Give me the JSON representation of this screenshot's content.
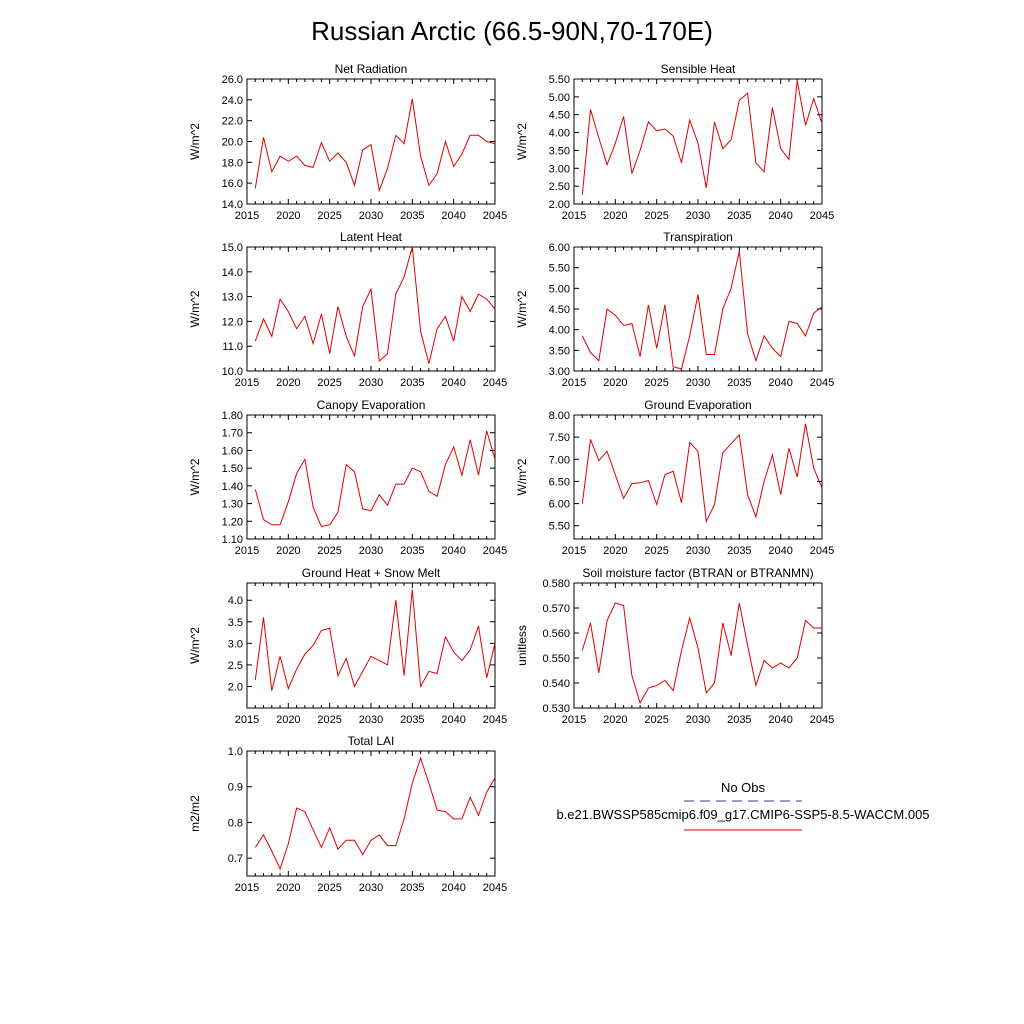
{
  "title": "Russian Arctic (66.5-90N,70-170E)",
  "legend": {
    "obs_label": "No Obs",
    "model_label": "b.e21.BWSSP585cmip6.f09_g17.CMIP6-SSP5-8.5-WACCM.005",
    "obs_color": "#3a3a8c",
    "model_color": "#e00000"
  },
  "chart_data": [
    {
      "type": "line",
      "title": "Net Radiation",
      "ylabel": "W/m^2",
      "xlim": [
        2015,
        2045
      ],
      "ylim": [
        14,
        26
      ],
      "xticks": [
        2015,
        2020,
        2025,
        2030,
        2035,
        2040,
        2045
      ],
      "yticks": [
        "14.0",
        "16.0",
        "18.0",
        "20.0",
        "22.0",
        "24.0",
        "26.0"
      ],
      "x": [
        2016,
        2017,
        2018,
        2019,
        2020,
        2021,
        2022,
        2023,
        2024,
        2025,
        2026,
        2027,
        2028,
        2029,
        2030,
        2031,
        2032,
        2033,
        2034,
        2035,
        2036,
        2037,
        2038,
        2039,
        2040,
        2041,
        2042,
        2043,
        2044,
        2045
      ],
      "values": [
        15.5,
        20.4,
        17.1,
        18.6,
        18.1,
        18.6,
        17.7,
        17.5,
        19.9,
        18.1,
        18.9,
        18.0,
        15.8,
        19.2,
        19.7,
        15.3,
        17.4,
        20.6,
        19.8,
        24.1,
        18.6,
        15.8,
        16.9,
        20.0,
        17.6,
        18.8,
        20.6,
        20.6,
        20.0,
        19.8
      ]
    },
    {
      "type": "line",
      "title": "Sensible Heat",
      "ylabel": "W/m^2",
      "xlim": [
        2015,
        2045
      ],
      "ylim": [
        2,
        5.5
      ],
      "xticks": [
        2015,
        2020,
        2025,
        2030,
        2035,
        2040,
        2045
      ],
      "yticks": [
        "2.00",
        "2.50",
        "3.00",
        "3.50",
        "4.00",
        "4.50",
        "5.00",
        "5.50"
      ],
      "x": [
        2016,
        2017,
        2018,
        2019,
        2020,
        2021,
        2022,
        2023,
        2024,
        2025,
        2026,
        2027,
        2028,
        2029,
        2030,
        2031,
        2032,
        2033,
        2034,
        2035,
        2036,
        2037,
        2038,
        2039,
        2040,
        2041,
        2042,
        2043,
        2044,
        2045
      ],
      "values": [
        2.25,
        4.65,
        3.85,
        3.1,
        3.7,
        4.45,
        2.85,
        3.5,
        4.3,
        4.05,
        4.1,
        3.9,
        3.15,
        4.35,
        3.7,
        2.45,
        4.3,
        3.55,
        3.8,
        4.9,
        5.1,
        3.15,
        2.9,
        4.7,
        3.55,
        3.25,
        5.45,
        4.2,
        4.95,
        4.25
      ]
    },
    {
      "type": "line",
      "title": "Latent Heat",
      "ylabel": "W/m^2",
      "xlim": [
        2015,
        2045
      ],
      "ylim": [
        10,
        15
      ],
      "xticks": [
        2015,
        2020,
        2025,
        2030,
        2035,
        2040,
        2045
      ],
      "yticks": [
        "10.0",
        "11.0",
        "12.0",
        "13.0",
        "14.0",
        "15.0"
      ],
      "x": [
        2016,
        2017,
        2018,
        2019,
        2020,
        2021,
        2022,
        2023,
        2024,
        2025,
        2026,
        2027,
        2028,
        2029,
        2030,
        2031,
        2032,
        2033,
        2034,
        2035,
        2036,
        2037,
        2038,
        2039,
        2040,
        2041,
        2042,
        2043,
        2044,
        2045
      ],
      "values": [
        11.2,
        12.1,
        11.4,
        12.9,
        12.4,
        11.7,
        12.2,
        11.1,
        12.3,
        10.7,
        12.6,
        11.4,
        10.6,
        12.6,
        13.3,
        10.4,
        10.7,
        13.1,
        13.8,
        15.0,
        11.6,
        10.3,
        11.7,
        12.2,
        11.2,
        13.0,
        12.4,
        13.1,
        12.9,
        12.5
      ]
    },
    {
      "type": "line",
      "title": "Transpiration",
      "ylabel": "W/m^2",
      "xlim": [
        2015,
        2045
      ],
      "ylim": [
        3,
        6
      ],
      "xticks": [
        2015,
        2020,
        2025,
        2030,
        2035,
        2040,
        2045
      ],
      "yticks": [
        "3.00",
        "3.50",
        "4.00",
        "4.50",
        "5.00",
        "5.50",
        "6.00"
      ],
      "x": [
        2016,
        2017,
        2018,
        2019,
        2020,
        2021,
        2022,
        2023,
        2024,
        2025,
        2026,
        2027,
        2028,
        2029,
        2030,
        2031,
        2032,
        2033,
        2034,
        2035,
        2036,
        2037,
        2038,
        2039,
        2040,
        2041,
        2042,
        2043,
        2044,
        2045
      ],
      "values": [
        3.85,
        3.45,
        3.25,
        4.5,
        4.35,
        4.1,
        4.15,
        3.35,
        4.6,
        3.55,
        4.6,
        3.1,
        3.05,
        3.85,
        4.85,
        3.4,
        3.4,
        4.5,
        5.0,
        5.9,
        3.9,
        3.25,
        3.85,
        3.55,
        3.35,
        4.2,
        4.15,
        3.85,
        4.4,
        4.55
      ]
    },
    {
      "type": "line",
      "title": "Canopy Evaporation",
      "ylabel": "W/m^2",
      "xlim": [
        2015,
        2045
      ],
      "ylim": [
        1.1,
        1.8
      ],
      "xticks": [
        2015,
        2020,
        2025,
        2030,
        2035,
        2040,
        2045
      ],
      "yticks": [
        "1.10",
        "1.20",
        "1.30",
        "1.40",
        "1.50",
        "1.60",
        "1.70",
        "1.80"
      ],
      "x": [
        2016,
        2017,
        2018,
        2019,
        2020,
        2021,
        2022,
        2023,
        2024,
        2025,
        2026,
        2027,
        2028,
        2029,
        2030,
        2031,
        2032,
        2033,
        2034,
        2035,
        2036,
        2037,
        2038,
        2039,
        2040,
        2041,
        2042,
        2043,
        2044,
        2045
      ],
      "values": [
        1.38,
        1.21,
        1.18,
        1.18,
        1.31,
        1.47,
        1.55,
        1.28,
        1.17,
        1.18,
        1.25,
        1.52,
        1.48,
        1.27,
        1.26,
        1.35,
        1.29,
        1.41,
        1.41,
        1.5,
        1.48,
        1.37,
        1.34,
        1.52,
        1.62,
        1.46,
        1.66,
        1.46,
        1.71,
        1.55
      ]
    },
    {
      "type": "line",
      "title": "Ground Evaporation",
      "ylabel": "W/m^2",
      "xlim": [
        2015,
        2045
      ],
      "ylim": [
        5.2,
        8.0
      ],
      "xticks": [
        2015,
        2020,
        2025,
        2030,
        2035,
        2040,
        2045
      ],
      "yticks": [
        "5.50",
        "6.00",
        "6.50",
        "7.00",
        "7.50",
        "8.00"
      ],
      "x": [
        2016,
        2017,
        2018,
        2019,
        2020,
        2021,
        2022,
        2023,
        2024,
        2025,
        2026,
        2027,
        2028,
        2029,
        2030,
        2031,
        2032,
        2033,
        2034,
        2035,
        2036,
        2037,
        2038,
        2039,
        2040,
        2041,
        2042,
        2043,
        2044,
        2045
      ],
      "values": [
        6.0,
        7.45,
        6.97,
        7.18,
        6.65,
        6.12,
        6.45,
        6.47,
        6.52,
        5.98,
        6.65,
        6.73,
        6.02,
        7.38,
        7.18,
        5.6,
        5.98,
        7.15,
        7.35,
        7.55,
        6.2,
        5.7,
        6.5,
        7.1,
        6.2,
        7.25,
        6.6,
        7.8,
        6.8,
        6.35
      ]
    },
    {
      "type": "line",
      "title": "Ground Heat + Snow Melt",
      "ylabel": "W/m^2",
      "xlim": [
        2015,
        2045
      ],
      "ylim": [
        1.5,
        4.4
      ],
      "xticks": [
        2015,
        2020,
        2025,
        2030,
        2035,
        2040,
        2045
      ],
      "yticks": [
        "2.0",
        "2.5",
        "3.0",
        "3.5",
        "4.0"
      ],
      "x": [
        2016,
        2017,
        2018,
        2019,
        2020,
        2021,
        2022,
        2023,
        2024,
        2025,
        2026,
        2027,
        2028,
        2029,
        2030,
        2031,
        2032,
        2033,
        2034,
        2035,
        2036,
        2037,
        2038,
        2039,
        2040,
        2041,
        2042,
        2043,
        2044,
        2045
      ],
      "values": [
        2.15,
        3.6,
        1.9,
        2.7,
        1.95,
        2.4,
        2.75,
        2.95,
        3.3,
        3.35,
        2.25,
        2.65,
        2.0,
        2.35,
        2.7,
        2.6,
        2.5,
        4.0,
        2.25,
        4.25,
        2.0,
        2.35,
        2.3,
        3.15,
        2.8,
        2.6,
        2.85,
        3.4,
        2.2,
        3.0
      ]
    },
    {
      "type": "line",
      "title": "Soil moisture factor (BTRAN or BTRANMN)",
      "ylabel": "unitless",
      "xlim": [
        2015,
        2045
      ],
      "ylim": [
        0.53,
        0.58
      ],
      "xticks": [
        2015,
        2020,
        2025,
        2030,
        2035,
        2040,
        2045
      ],
      "yticks": [
        "0.530",
        "0.540",
        "0.550",
        "0.560",
        "0.570",
        "0.580"
      ],
      "x": [
        2016,
        2017,
        2018,
        2019,
        2020,
        2021,
        2022,
        2023,
        2024,
        2025,
        2026,
        2027,
        2028,
        2029,
        2030,
        2031,
        2032,
        2033,
        2034,
        2035,
        2036,
        2037,
        2038,
        2039,
        2040,
        2041,
        2042,
        2043,
        2044,
        2045
      ],
      "values": [
        0.553,
        0.564,
        0.544,
        0.565,
        0.572,
        0.571,
        0.543,
        0.532,
        0.538,
        0.539,
        0.541,
        0.537,
        0.553,
        0.566,
        0.554,
        0.536,
        0.54,
        0.564,
        0.551,
        0.572,
        0.555,
        0.539,
        0.549,
        0.546,
        0.548,
        0.546,
        0.55,
        0.565,
        0.562,
        0.562
      ]
    },
    {
      "type": "line",
      "title": "Total LAI",
      "ylabel": "m2/m2",
      "xlim": [
        2015,
        2045
      ],
      "ylim": [
        0.65,
        1.0
      ],
      "xticks": [
        2015,
        2020,
        2025,
        2030,
        2035,
        2040,
        2045
      ],
      "yticks": [
        "0.7",
        "0.8",
        "0.9",
        "1.0"
      ],
      "x": [
        2016,
        2017,
        2018,
        2019,
        2020,
        2021,
        2022,
        2023,
        2024,
        2025,
        2026,
        2027,
        2028,
        2029,
        2030,
        2031,
        2032,
        2033,
        2034,
        2035,
        2036,
        2037,
        2038,
        2039,
        2040,
        2041,
        2042,
        2043,
        2044,
        2045
      ],
      "values": [
        0.73,
        0.765,
        0.72,
        0.67,
        0.74,
        0.84,
        0.83,
        0.78,
        0.73,
        0.785,
        0.725,
        0.75,
        0.75,
        0.71,
        0.75,
        0.765,
        0.735,
        0.735,
        0.81,
        0.91,
        0.98,
        0.91,
        0.835,
        0.83,
        0.81,
        0.81,
        0.87,
        0.82,
        0.885,
        0.925
      ]
    }
  ]
}
